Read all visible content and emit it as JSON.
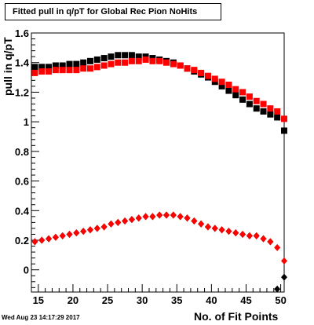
{
  "chart_data": {
    "type": "scatter",
    "title": "Fitted pull in q/pT  for Global Rec Pion NoHits",
    "xlabel": "No. of Fit Points",
    "ylabel": "pull in q/pT",
    "xlim": [
      14,
      50.5
    ],
    "ylim": [
      -0.15,
      1.6
    ],
    "xticks": [
      15,
      20,
      25,
      30,
      35,
      40,
      45,
      50
    ],
    "yticks": [
      0,
      0.2,
      0.4,
      0.6,
      0.8,
      1,
      1.2,
      1.4,
      1.6
    ],
    "ytick_labels": [
      "0",
      "0.2",
      "0.4",
      "0.6",
      "0.8",
      "1",
      "1.2",
      "1.4",
      "1.6"
    ],
    "xtick_labels": [
      "15",
      "20",
      "25",
      "30",
      "35",
      "40",
      "45",
      "50"
    ],
    "x": [
      14.5,
      15.5,
      16.5,
      17.5,
      18.5,
      19.5,
      20.5,
      21.5,
      22.5,
      23.5,
      24.5,
      25.5,
      26.5,
      27.5,
      28.5,
      29.5,
      30.5,
      31.5,
      32.5,
      33.5,
      34.5,
      35.5,
      36.5,
      37.5,
      38.5,
      39.5,
      40.5,
      41.5,
      42.5,
      43.5,
      44.5,
      45.5,
      46.5,
      47.5,
      48.5,
      49.5,
      50.5
    ],
    "series": [
      {
        "marker": "square",
        "color": "#000000",
        "values": [
          1.37,
          1.37,
          1.37,
          1.38,
          1.38,
          1.39,
          1.39,
          1.4,
          1.41,
          1.42,
          1.43,
          1.44,
          1.45,
          1.45,
          1.45,
          1.44,
          1.44,
          1.43,
          1.42,
          1.41,
          1.4,
          1.38,
          1.36,
          1.34,
          1.32,
          1.3,
          1.27,
          1.24,
          1.21,
          1.18,
          1.15,
          1.12,
          1.09,
          1.07,
          1.05,
          1.03,
          0.94
        ]
      },
      {
        "marker": "square",
        "color": "#ff0000",
        "values": [
          1.33,
          1.34,
          1.34,
          1.35,
          1.35,
          1.35,
          1.35,
          1.36,
          1.36,
          1.37,
          1.38,
          1.39,
          1.4,
          1.4,
          1.41,
          1.41,
          1.42,
          1.41,
          1.41,
          1.4,
          1.39,
          1.38,
          1.36,
          1.35,
          1.33,
          1.31,
          1.29,
          1.27,
          1.25,
          1.22,
          1.2,
          1.17,
          1.14,
          1.12,
          1.09,
          1.07,
          1.02
        ]
      },
      {
        "marker": "diamond",
        "color": "#000000",
        "values": [
          0.19,
          0.2,
          0.21,
          0.22,
          0.23,
          0.24,
          0.25,
          0.26,
          0.27,
          0.28,
          0.29,
          0.31,
          0.32,
          0.33,
          0.34,
          0.35,
          0.36,
          0.36,
          0.37,
          0.37,
          0.37,
          0.36,
          0.35,
          0.33,
          0.31,
          0.29,
          0.28,
          0.27,
          0.26,
          0.25,
          0.24,
          0.23,
          0.23,
          0.21,
          0.19,
          -0.13,
          -0.05
        ]
      },
      {
        "marker": "diamond",
        "color": "#ff0000",
        "values": [
          0.19,
          0.2,
          0.21,
          0.22,
          0.23,
          0.24,
          0.25,
          0.26,
          0.27,
          0.28,
          0.29,
          0.31,
          0.32,
          0.33,
          0.34,
          0.35,
          0.36,
          0.36,
          0.37,
          0.37,
          0.37,
          0.36,
          0.35,
          0.33,
          0.31,
          0.29,
          0.28,
          0.27,
          0.26,
          0.25,
          0.24,
          0.23,
          0.23,
          0.21,
          0.19,
          0.15,
          0.06
        ]
      }
    ],
    "grid": false
  },
  "footer": {
    "datestamp": "Wed Aug 23 14:17:29 2017"
  }
}
